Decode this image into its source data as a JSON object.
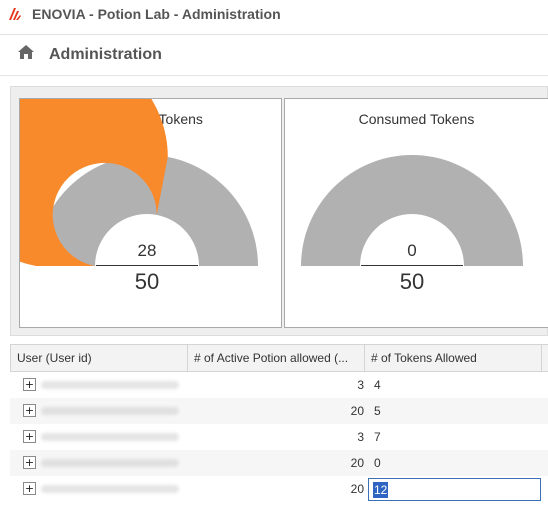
{
  "window": {
    "title": "ENOVIA - Potion Lab - Administration",
    "logo_icon": "3dexperience-logo-icon"
  },
  "page": {
    "title": "Administration",
    "home_icon": "home-icon"
  },
  "gauges": [
    {
      "title": "Required Tokens",
      "value": "28",
      "max": "50",
      "fraction": 0.56,
      "fill_color": "#f98a2c",
      "track_color": "#b1b1b1"
    },
    {
      "title": "Consumed Tokens",
      "value": "0",
      "max": "50",
      "fraction": 0.0,
      "fill_color": "#f98a2c",
      "track_color": "#b1b1b1"
    }
  ],
  "table": {
    "columns": [
      "User (User id)",
      "# of Active Potion allowed (...",
      "# of Tokens Allowed"
    ],
    "rows": [
      {
        "active_allowed": "3",
        "tokens_allowed": "4"
      },
      {
        "active_allowed": "20",
        "tokens_allowed": "5"
      },
      {
        "active_allowed": "3",
        "tokens_allowed": "7"
      },
      {
        "active_allowed": "20",
        "tokens_allowed": "0"
      },
      {
        "active_allowed": "20",
        "tokens_allowed": "12"
      }
    ],
    "expand_symbol": "+"
  }
}
